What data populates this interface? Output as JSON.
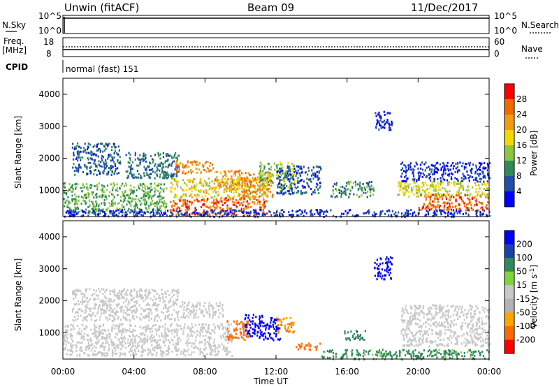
{
  "header": {
    "radar": "Unwin (fitACF)",
    "beam": "Beam 09",
    "date": "11/Dec/2017"
  },
  "top_panels": {
    "nsky_label": "N.Sky",
    "nsky_ticks": [
      "10^5",
      "10^0"
    ],
    "nsearch_label": "N.Search",
    "nsearch_ticks": [
      "10^5",
      "10^0"
    ],
    "freq_label": "Freq.",
    "freq_unit": "[MHz]",
    "freq_ticks": [
      "18",
      "8"
    ],
    "nave_label": "Nave",
    "nave_ticks": [
      "60",
      "0"
    ],
    "cpid_label": "CPID",
    "cpid_value": "normal (fast) 151"
  },
  "colors": {
    "power": [
      "#0000ff",
      "#1f4fa8",
      "#2f8a5a",
      "#8cc63f",
      "#f5d800",
      "#f39c12",
      "#f06a00",
      "#ff0000"
    ],
    "velocity": [
      "#ff0000",
      "#ff6a00",
      "#ffa500",
      "#b3b3b3",
      "#c8c8c8",
      "#7fd43f",
      "#2e8b57",
      "#1a3fb0",
      "#0000ff"
    ],
    "ground_scatter": "#c8c8c8"
  },
  "chart_data": [
    {
      "type": "heatmap",
      "panel": "power",
      "xlabel": "",
      "ylabel": "Slant Range [km]",
      "x_ticks": [
        "00:00",
        "04:00",
        "08:00",
        "12:00",
        "16:00",
        "20:00",
        "00:00"
      ],
      "y_ticks": [
        "1000",
        "2000",
        "3000",
        "4000"
      ],
      "ylim": [
        180,
        4500
      ],
      "xlim_hours": [
        0,
        24
      ],
      "colorbar_label": "Power [dB]",
      "colorbar_ticks": [
        "28",
        "24",
        "20",
        "16",
        "12",
        "8",
        "4"
      ],
      "regions": [
        {
          "t": [
            0.0,
            5.8
          ],
          "r": [
            300,
            1250
          ],
          "v": 14
        },
        {
          "t": [
            0.5,
            3.2
          ],
          "r": [
            1500,
            2500
          ],
          "v": 9
        },
        {
          "t": [
            3.5,
            6.5
          ],
          "r": [
            1400,
            2200
          ],
          "v": 10
        },
        {
          "t": [
            6.0,
            11.5
          ],
          "r": [
            220,
            800
          ],
          "v": 28
        },
        {
          "t": [
            6.0,
            11.5
          ],
          "r": [
            800,
            1400
          ],
          "v": 20
        },
        {
          "t": [
            6.3,
            8.5
          ],
          "r": [
            1550,
            1950
          ],
          "v": 26
        },
        {
          "t": [
            8.5,
            10.0
          ],
          "r": [
            1000,
            1650
          ],
          "v": 24
        },
        {
          "t": [
            10.0,
            11.8
          ],
          "r": [
            800,
            1600
          ],
          "v": 26
        },
        {
          "t": [
            11.0,
            13.0
          ],
          "r": [
            1100,
            1900
          ],
          "v": 16
        },
        {
          "t": [
            12.0,
            14.5
          ],
          "r": [
            900,
            1800
          ],
          "v": 8
        },
        {
          "t": [
            15.0,
            17.5
          ],
          "r": [
            800,
            1300
          ],
          "v": 12
        },
        {
          "t": [
            17.5,
            18.5
          ],
          "r": [
            2900,
            3500
          ],
          "v": 5
        },
        {
          "t": [
            18.8,
            24.0
          ],
          "r": [
            800,
            1300
          ],
          "v": 19
        },
        {
          "t": [
            20.0,
            24.0
          ],
          "r": [
            400,
            900
          ],
          "v": 28
        },
        {
          "t": [
            19.0,
            24.0
          ],
          "r": [
            1300,
            1900
          ],
          "v": 6
        },
        {
          "t": [
            0.0,
            24.0
          ],
          "r": [
            200,
            420
          ],
          "v": 6
        }
      ]
    },
    {
      "type": "heatmap",
      "panel": "velocity",
      "xlabel": "Time UT",
      "ylabel": "Slant Range [km]",
      "x_ticks": [
        "00:00",
        "04:00",
        "08:00",
        "12:00",
        "16:00",
        "20:00",
        "00:00"
      ],
      "y_ticks": [
        "1000",
        "2000",
        "3000",
        "4000"
      ],
      "ylim": [
        180,
        4500
      ],
      "xlim_hours": [
        0,
        24
      ],
      "colorbar_label": "Velocity [m s^-1]",
      "colorbar_ticks": [
        "200",
        "100",
        "50",
        "15",
        "-15",
        "-50",
        "-100",
        "-200"
      ],
      "regions": [
        {
          "t": [
            0.0,
            9.5
          ],
          "r": [
            300,
            1300
          ],
          "v": 0,
          "ground": true
        },
        {
          "t": [
            0.5,
            6.5
          ],
          "r": [
            1400,
            2400
          ],
          "v": 0,
          "ground": true
        },
        {
          "t": [
            6.5,
            9.0
          ],
          "r": [
            1500,
            2000
          ],
          "v": 0,
          "ground": true
        },
        {
          "t": [
            9.2,
            10.5
          ],
          "r": [
            800,
            1400
          ],
          "v": -150
        },
        {
          "t": [
            10.2,
            11.2
          ],
          "r": [
            900,
            1600
          ],
          "v": 180
        },
        {
          "t": [
            11.0,
            12.2
          ],
          "r": [
            800,
            1500
          ],
          "v": 220
        },
        {
          "t": [
            12.0,
            13.0
          ],
          "r": [
            1000,
            1500
          ],
          "v": -100
        },
        {
          "t": [
            13.0,
            14.5
          ],
          "r": [
            500,
            700
          ],
          "v": -120
        },
        {
          "t": [
            15.8,
            17.0
          ],
          "r": [
            800,
            1100
          ],
          "v": 40
        },
        {
          "t": [
            17.5,
            18.5
          ],
          "r": [
            2700,
            3400
          ],
          "v": 200
        },
        {
          "t": [
            19.0,
            24.0
          ],
          "r": [
            600,
            1900
          ],
          "v": 0,
          "ground": true
        },
        {
          "t": [
            14.5,
            24.0
          ],
          "r": [
            200,
            500
          ],
          "v": 30
        }
      ]
    }
  ]
}
